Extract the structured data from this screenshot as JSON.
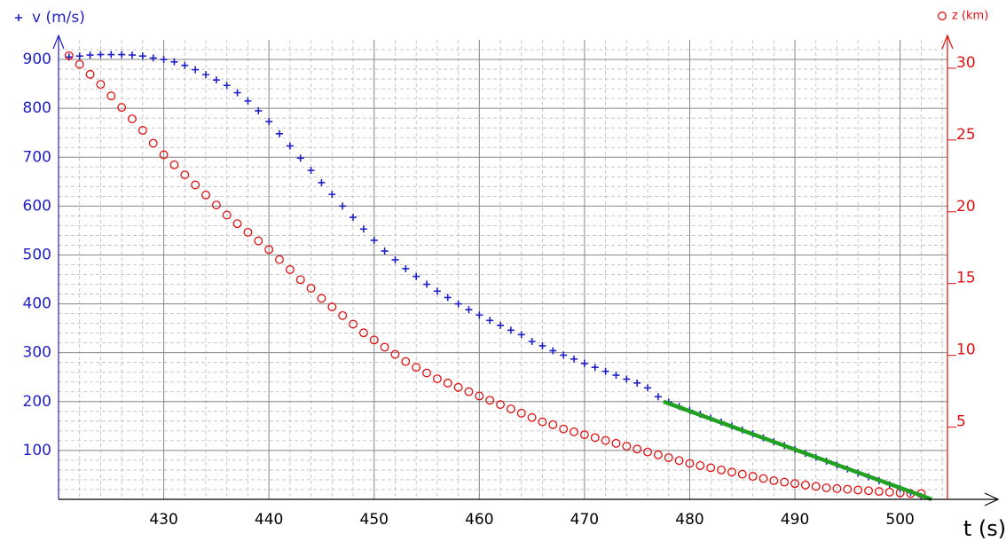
{
  "chart_data": {
    "type": "scatter",
    "xlabel": "t (s)",
    "xlim": [
      420,
      504.5
    ],
    "xticks": [
      430,
      440,
      450,
      460,
      470,
      480,
      490,
      500
    ],
    "ylim": [
      0,
      940
    ],
    "yticks": [
      100,
      200,
      300,
      400,
      500,
      600,
      700,
      800,
      900
    ],
    "y2lim": [
      -0.4,
      31.6
    ],
    "y2ticks": [
      5,
      10,
      15,
      20,
      25,
      30
    ],
    "grid": true,
    "minor_grid": true,
    "series": [
      {
        "name": "v (m/s)",
        "type": "scatter",
        "marker": "+",
        "color": "#1f1fc8",
        "x": [
          421,
          422,
          423,
          424,
          425,
          426,
          427,
          428,
          429,
          430,
          431,
          432,
          433,
          434,
          435,
          436,
          437,
          438,
          439,
          440,
          441,
          442,
          443,
          444,
          445,
          446,
          447,
          448,
          449,
          450,
          451,
          452,
          453,
          454,
          455,
          456,
          457,
          458,
          459,
          460,
          461,
          462,
          463,
          464,
          465,
          466,
          467,
          468,
          469,
          470,
          471,
          472,
          473,
          474,
          475,
          476,
          477,
          478,
          479,
          480,
          481,
          482,
          483,
          484,
          485,
          486,
          487,
          488,
          489,
          490,
          491,
          492,
          493,
          494,
          495,
          496,
          497,
          498,
          499,
          500,
          501,
          502
        ],
        "values": [
          905,
          907,
          909,
          910,
          910,
          910,
          909,
          907,
          903,
          900,
          895,
          888,
          879,
          869,
          858,
          847,
          832,
          815,
          795,
          773,
          748,
          723,
          698,
          673,
          648,
          624,
          600,
          577,
          553,
          530,
          508,
          490,
          472,
          456,
          440,
          426,
          413,
          400,
          388,
          377,
          366,
          356,
          346,
          337,
          323,
          314,
          304,
          295,
          287,
          278,
          270,
          262,
          254,
          246,
          238,
          228,
          210,
          199,
          190,
          182,
          174,
          166,
          158,
          150,
          142,
          134,
          126,
          118,
          110,
          102,
          94,
          86,
          78,
          70,
          62,
          54,
          46,
          38,
          30,
          22,
          14,
          6
        ]
      },
      {
        "name": "z (km)",
        "type": "scatter",
        "marker": "o",
        "color": "#e01010",
        "axis": "y2",
        "x": [
          421,
          422,
          423,
          424,
          425,
          426,
          427,
          428,
          429,
          430,
          431,
          432,
          433,
          434,
          435,
          436,
          437,
          438,
          439,
          440,
          441,
          442,
          443,
          444,
          445,
          446,
          447,
          448,
          449,
          450,
          451,
          452,
          453,
          454,
          455,
          456,
          457,
          458,
          459,
          460,
          461,
          462,
          463,
          464,
          465,
          466,
          467,
          468,
          469,
          470,
          471,
          472,
          473,
          474,
          475,
          476,
          477,
          478,
          479,
          480,
          481,
          482,
          483,
          484,
          485,
          486,
          487,
          488,
          489,
          490,
          491,
          492,
          493,
          494,
          495,
          496,
          497,
          498,
          499,
          500,
          501,
          502
        ],
        "values": [
          30.5,
          29.9,
          29.2,
          28.5,
          27.7,
          26.9,
          26.1,
          25.3,
          24.4,
          23.6,
          22.9,
          22.2,
          21.5,
          20.8,
          20.1,
          19.4,
          18.8,
          18.2,
          17.6,
          17.0,
          16.3,
          15.6,
          14.9,
          14.3,
          13.6,
          13.0,
          12.4,
          11.8,
          11.2,
          10.7,
          10.2,
          9.7,
          9.2,
          8.8,
          8.4,
          8.0,
          7.7,
          7.4,
          7.1,
          6.8,
          6.5,
          6.2,
          5.9,
          5.6,
          5.3,
          5.0,
          4.8,
          4.5,
          4.3,
          4.1,
          3.9,
          3.7,
          3.5,
          3.3,
          3.1,
          2.9,
          2.7,
          2.5,
          2.3,
          2.1,
          1.95,
          1.8,
          1.65,
          1.5,
          1.35,
          1.2,
          1.05,
          0.9,
          0.8,
          0.7,
          0.6,
          0.5,
          0.4,
          0.35,
          0.3,
          0.25,
          0.2,
          0.15,
          0.1,
          0.05,
          0.0,
          0.0
        ]
      },
      {
        "type": "line",
        "color": "#22a022",
        "x": [
          477.5,
          503
        ],
        "values": [
          200,
          0
        ]
      }
    ]
  }
}
